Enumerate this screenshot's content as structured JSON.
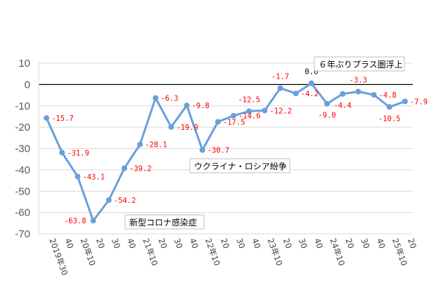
{
  "chart_data": {
    "type": "line",
    "x": [
      "2019年30",
      "40",
      "20年10",
      "20",
      "30",
      "40",
      "21年10",
      "20",
      "30",
      "40",
      "22年10",
      "20",
      "30",
      "40",
      "23年10",
      "20",
      "30",
      "40",
      "24年10",
      "20",
      "30",
      "40",
      "25年10",
      "20"
    ],
    "xtick_labels": [
      "2019年30",
      "40",
      "20年10",
      "20",
      "30",
      "40",
      "21年10",
      "20",
      "30",
      "40",
      "22年10",
      "20",
      "30",
      "40",
      "23年10",
      "20",
      "30",
      "40",
      "24年10",
      "20",
      "30",
      "40",
      "25年10",
      "20"
    ],
    "series": [
      {
        "values": [
          -15.7,
          -31.9,
          -43.1,
          -63.8,
          -54.2,
          -39.2,
          -28.1,
          -6.3,
          -19.9,
          -9.8,
          -30.7,
          -17.5,
          -14.6,
          -12.5,
          -12.2,
          -1.7,
          -4.2,
          0.6,
          -9.0,
          -4.4,
          -3.3,
          -4.8,
          -10.5,
          -7.9
        ],
        "data_labels": [
          "-15.7",
          "-31.9",
          "-43.1",
          "-63.8",
          "-54.2",
          "-39.2",
          "-28.1",
          "-6.3",
          "-19.9",
          "-9.8",
          "-30.7",
          "-17.5",
          "-14.6",
          "-12.5",
          "-12.2",
          "-1.7",
          "-4.2",
          "0.6",
          "-9.0",
          "-4.4",
          "-3.3",
          "-4.8",
          "-10.5",
          "-7.9"
        ],
        "color": "#6a9fdc",
        "label_color": "#ff0000",
        "positive_label_color": "#000000"
      }
    ],
    "ylim": [
      -70,
      10
    ],
    "yticks": [
      10,
      0,
      -10,
      -20,
      -30,
      -40,
      -50,
      -60,
      -70
    ],
    "grid": true,
    "zero_line_color": "#000000",
    "annotations": [
      {
        "text": "新型コロナ感染症",
        "at_index": 3
      },
      {
        "text": "ウクライナ・ロシア紛争",
        "at_index": 10
      },
      {
        "text": "６年ぶりプラス圏浮上",
        "at_index": 17
      }
    ]
  }
}
